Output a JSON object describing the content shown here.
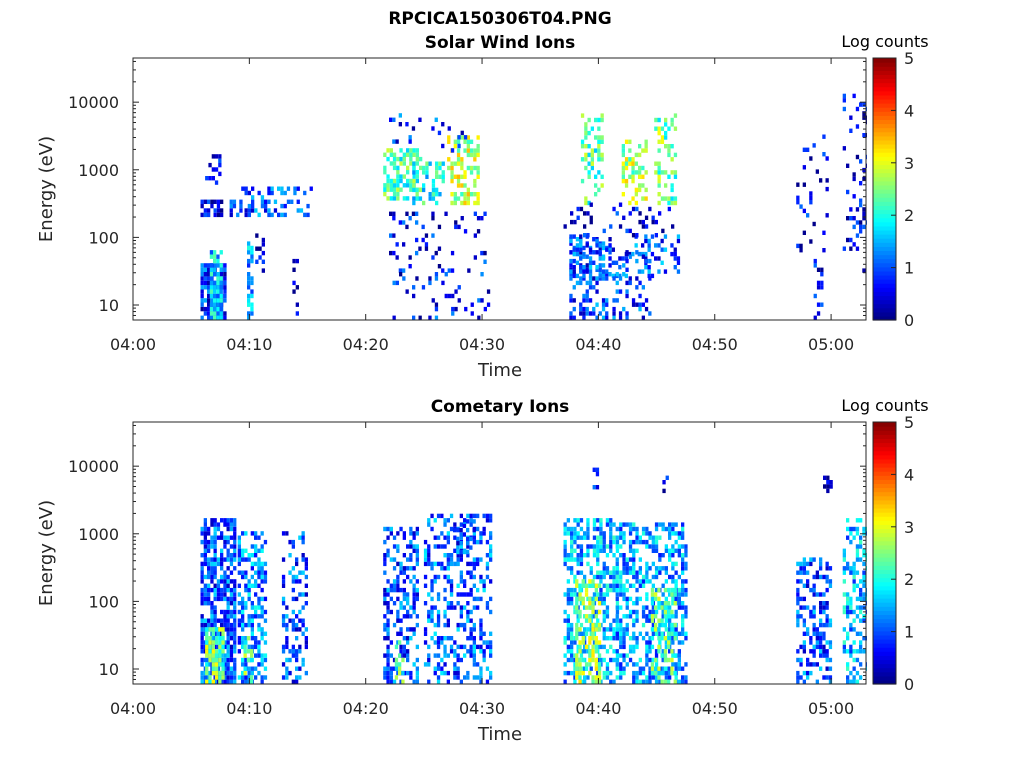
{
  "figure_title": "RPCICA150306T04.PNG",
  "chart_data": [
    {
      "type": "heatmap",
      "title": "Solar Wind Ions",
      "xlabel": "Time",
      "ylabel": "Energy (eV)",
      "x_ticks": [
        "04:00",
        "04:10",
        "04:20",
        "04:30",
        "04:40",
        "04:50",
        "05:00"
      ],
      "x_range_minutes": [
        0,
        63
      ],
      "y_scale": "log",
      "y_ticks": [
        "10",
        "100",
        "1000",
        "10000"
      ],
      "y_range": [
        6,
        45000
      ],
      "colorbar": {
        "label": "Log counts",
        "ticks": [
          "0",
          "1",
          "2",
          "3",
          "4",
          "5"
        ],
        "range": [
          0,
          5
        ],
        "colormap": "jet"
      },
      "bursts": [
        {
          "t0": 5.8,
          "t1": 8.0,
          "e0": 6,
          "e1": 40,
          "level": 0.8,
          "density": 0.9
        },
        {
          "t0": 6.6,
          "t1": 7.7,
          "e0": 6,
          "e1": 60,
          "level": 1.7,
          "density": 0.8
        },
        {
          "t0": 5.8,
          "t1": 7.5,
          "e0": 200,
          "e1": 320,
          "level": 0.5,
          "density": 0.75
        },
        {
          "t0": 6.2,
          "t1": 7.4,
          "e0": 600,
          "e1": 1600,
          "level": 0.5,
          "density": 0.25
        },
        {
          "t0": 8.3,
          "t1": 9.2,
          "e0": 200,
          "e1": 320,
          "level": 0.7,
          "density": 0.6
        },
        {
          "t0": 9.3,
          "t1": 15.2,
          "e0": 200,
          "e1": 560,
          "level": 1.0,
          "density": 0.35
        },
        {
          "t0": 9.8,
          "t1": 10.3,
          "e0": 6,
          "e1": 80,
          "level": 1.4,
          "density": 0.5
        },
        {
          "t0": 10.5,
          "t1": 11.3,
          "e0": 30,
          "e1": 100,
          "level": 0.4,
          "density": 0.3
        },
        {
          "t0": 13.7,
          "t1": 14.2,
          "e0": 6,
          "e1": 60,
          "level": 0.3,
          "density": 0.4
        },
        {
          "t0": 21.5,
          "t1": 24.7,
          "e0": 350,
          "e1": 1800,
          "level": 2.2,
          "density": 0.55
        },
        {
          "t0": 24.0,
          "t1": 26.7,
          "e0": 300,
          "e1": 1300,
          "level": 2.0,
          "density": 0.5
        },
        {
          "t0": 27.0,
          "t1": 29.8,
          "e0": 300,
          "e1": 3000,
          "level": 2.8,
          "density": 0.55
        },
        {
          "t0": 22.0,
          "t1": 30.5,
          "e0": 30,
          "e1": 220,
          "level": 0.6,
          "density": 0.15
        },
        {
          "t0": 22.3,
          "t1": 30.5,
          "e0": 6,
          "e1": 30,
          "level": 0.7,
          "density": 0.12
        },
        {
          "t0": 22.0,
          "t1": 29.0,
          "e0": 1800,
          "e1": 6000,
          "level": 0.8,
          "density": 0.12
        },
        {
          "t0": 37.5,
          "t1": 41.0,
          "e0": 6,
          "e1": 100,
          "level": 0.9,
          "density": 0.45
        },
        {
          "t0": 37.5,
          "t1": 47.0,
          "e0": 25,
          "e1": 110,
          "level": 1.0,
          "density": 0.3
        },
        {
          "t0": 38.5,
          "t1": 40.3,
          "e0": 300,
          "e1": 6000,
          "level": 2.3,
          "density": 0.4
        },
        {
          "t0": 42.0,
          "t1": 44.2,
          "e0": 300,
          "e1": 2500,
          "level": 2.7,
          "density": 0.5
        },
        {
          "t0": 44.8,
          "t1": 46.6,
          "e0": 300,
          "e1": 6000,
          "level": 2.4,
          "density": 0.4
        },
        {
          "t0": 37.0,
          "t1": 46.5,
          "e0": 100,
          "e1": 300,
          "level": 0.5,
          "density": 0.15
        },
        {
          "t0": 41.2,
          "t1": 44.5,
          "e0": 6,
          "e1": 60,
          "level": 0.9,
          "density": 0.25
        },
        {
          "t0": 57.0,
          "t1": 59.7,
          "e0": 60,
          "e1": 3000,
          "level": 0.5,
          "density": 0.12
        },
        {
          "t0": 58.5,
          "t1": 59.3,
          "e0": 6,
          "e1": 60,
          "level": 0.6,
          "density": 0.3
        },
        {
          "t0": 61.0,
          "t1": 63.0,
          "e0": 30,
          "e1": 12000,
          "level": 0.5,
          "density": 0.18
        }
      ]
    },
    {
      "type": "heatmap",
      "title": "Cometary Ions",
      "xlabel": "Time",
      "ylabel": "Energy (eV)",
      "x_ticks": [
        "04:00",
        "04:10",
        "04:20",
        "04:30",
        "04:40",
        "04:50",
        "05:00"
      ],
      "x_range_minutes": [
        0,
        63
      ],
      "y_scale": "log",
      "y_ticks": [
        "10",
        "100",
        "1000",
        "10000"
      ],
      "y_range": [
        6,
        45000
      ],
      "colorbar": {
        "label": "Log counts",
        "ticks": [
          "0",
          "1",
          "2",
          "3",
          "4",
          "5"
        ],
        "range": [
          0,
          5
        ],
        "colormap": "jet"
      },
      "bursts": [
        {
          "t0": 5.8,
          "t1": 8.8,
          "e0": 6,
          "e1": 1500,
          "level": 1.0,
          "density": 0.75
        },
        {
          "t0": 6.2,
          "t1": 7.8,
          "e0": 6,
          "e1": 40,
          "level": 2.5,
          "density": 0.8
        },
        {
          "t0": 9.0,
          "t1": 11.5,
          "e0": 6,
          "e1": 1000,
          "level": 1.3,
          "density": 0.5
        },
        {
          "t0": 9.5,
          "t1": 10.2,
          "e0": 6,
          "e1": 30,
          "level": 2.4,
          "density": 0.6
        },
        {
          "t0": 12.8,
          "t1": 15.0,
          "e0": 6,
          "e1": 1000,
          "level": 1.0,
          "density": 0.35
        },
        {
          "t0": 21.5,
          "t1": 24.5,
          "e0": 6,
          "e1": 1200,
          "level": 1.0,
          "density": 0.45
        },
        {
          "t0": 22.5,
          "t1": 23.3,
          "e0": 6,
          "e1": 30,
          "level": 2.2,
          "density": 0.5
        },
        {
          "t0": 25.0,
          "t1": 30.8,
          "e0": 6,
          "e1": 1800,
          "level": 1.1,
          "density": 0.4
        },
        {
          "t0": 27.5,
          "t1": 29.2,
          "e0": 500,
          "e1": 1500,
          "level": 1.0,
          "density": 0.4
        },
        {
          "t0": 37.0,
          "t1": 41.5,
          "e0": 6,
          "e1": 1500,
          "level": 1.5,
          "density": 0.55
        },
        {
          "t0": 38.0,
          "t1": 40.0,
          "e0": 6,
          "e1": 200,
          "level": 2.6,
          "density": 0.5
        },
        {
          "t0": 41.5,
          "t1": 47.5,
          "e0": 6,
          "e1": 1400,
          "level": 1.4,
          "density": 0.5
        },
        {
          "t0": 44.5,
          "t1": 46.5,
          "e0": 6,
          "e1": 150,
          "level": 2.3,
          "density": 0.45
        },
        {
          "t0": 39.5,
          "t1": 40.2,
          "e0": 2500,
          "e1": 9000,
          "level": 0.5,
          "density": 0.25
        },
        {
          "t0": 45.5,
          "t1": 46.0,
          "e0": 4000,
          "e1": 9000,
          "level": 0.5,
          "density": 0.3
        },
        {
          "t0": 57.0,
          "t1": 60.0,
          "e0": 6,
          "e1": 400,
          "level": 1.0,
          "density": 0.4
        },
        {
          "t0": 61.0,
          "t1": 63.0,
          "e0": 6,
          "e1": 1500,
          "level": 1.5,
          "density": 0.45
        },
        {
          "t0": 59.3,
          "t1": 59.9,
          "e0": 4000,
          "e1": 6500,
          "level": 0.4,
          "density": 0.8
        }
      ]
    }
  ]
}
